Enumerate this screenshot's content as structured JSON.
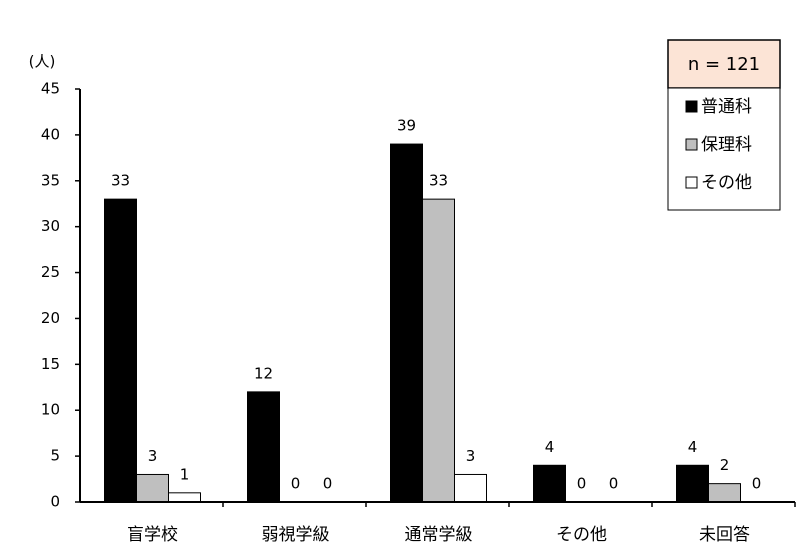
{
  "chart_data": {
    "type": "bar",
    "y_label": "(人)",
    "annotation": "n = 121",
    "categories": [
      "盲学校",
      "弱視学級",
      "通常学級",
      "その他",
      "未回答"
    ],
    "series": [
      {
        "name": "普通科",
        "color": "#000000",
        "values": [
          33,
          12,
          39,
          4,
          4
        ]
      },
      {
        "name": "保理科",
        "color": "#bfbfbf",
        "values": [
          3,
          0,
          33,
          0,
          2
        ]
      },
      {
        "name": "その他",
        "color": "#ffffff",
        "values": [
          1,
          0,
          3,
          0,
          0
        ]
      }
    ],
    "ylim": [
      0,
      45
    ],
    "yticks": [
      0,
      5,
      10,
      15,
      20,
      25,
      30,
      35,
      40,
      45
    ],
    "grid": false
  }
}
